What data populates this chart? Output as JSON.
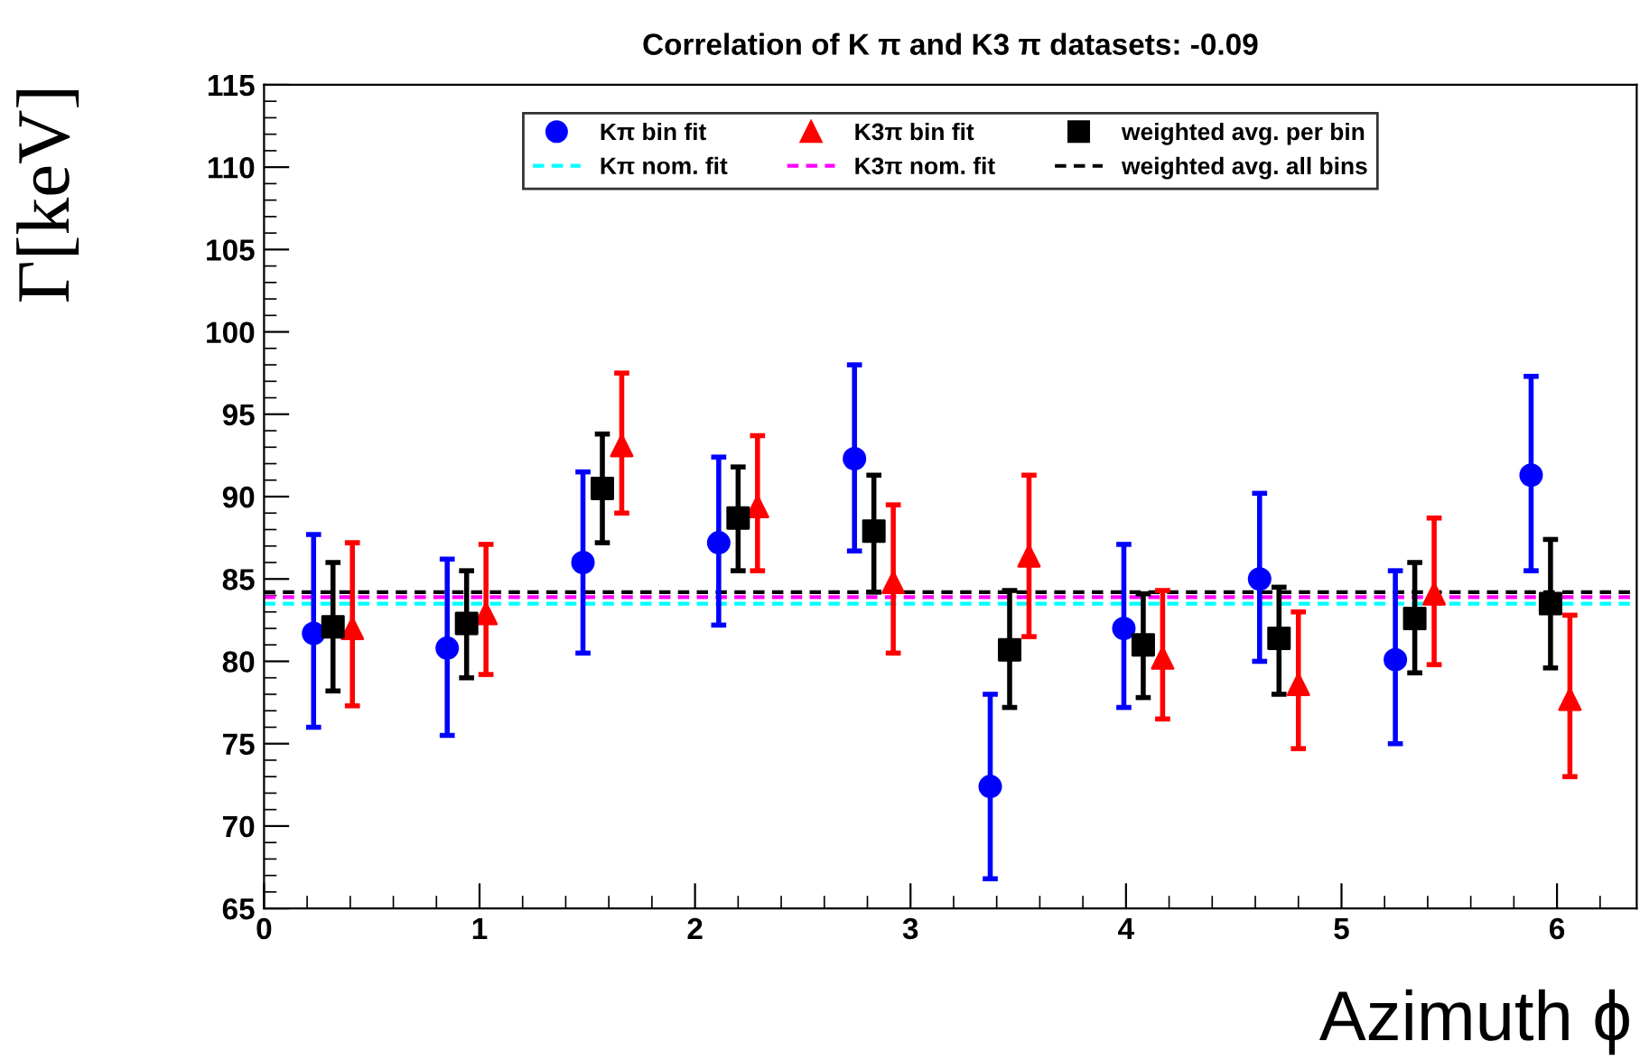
{
  "chart_data": {
    "type": "scatter",
    "title": "Correlation of K π and K3 π datasets: -0.09",
    "xlabel": "Azimuth ϕ",
    "ylabel": "Γ[keV]",
    "xlim": [
      0,
      6.37
    ],
    "xticks": [
      0,
      1,
      2,
      3,
      4,
      5,
      6
    ],
    "ylim": [
      65,
      115
    ],
    "yticks": [
      65,
      70,
      75,
      80,
      85,
      90,
      95,
      100,
      105,
      110,
      115
    ],
    "grid": false,
    "legend": "top",
    "series": [
      {
        "name": "Kπ bin fit",
        "color": "#0000ff",
        "marker": "circle",
        "x": [
          0.23,
          0.85,
          1.48,
          2.11,
          2.74,
          3.37,
          3.99,
          4.62,
          5.25,
          5.88
        ],
        "values": [
          81.7,
          80.8,
          86.0,
          87.2,
          92.3,
          72.4,
          82.0,
          85.0,
          80.1,
          91.3
        ],
        "errors": [
          [
            76.0,
            87.7
          ],
          [
            75.5,
            86.2
          ],
          [
            80.5,
            91.5
          ],
          [
            82.2,
            92.4
          ],
          [
            86.7,
            98.0
          ],
          [
            66.8,
            78.0
          ],
          [
            77.2,
            87.1
          ],
          [
            80.0,
            90.2
          ],
          [
            75.0,
            85.5
          ],
          [
            85.5,
            97.3
          ]
        ]
      },
      {
        "name": "K3π bin fit",
        "color": "#ff0000",
        "marker": "triangle",
        "x": [
          0.41,
          1.03,
          1.66,
          2.29,
          2.92,
          3.55,
          4.17,
          4.8,
          5.43,
          6.06
        ],
        "values": [
          82.0,
          82.9,
          93.1,
          89.4,
          84.8,
          86.4,
          80.2,
          78.6,
          84.1,
          77.7
        ],
        "errors": [
          [
            77.3,
            87.2
          ],
          [
            79.2,
            87.1
          ],
          [
            89.0,
            97.5
          ],
          [
            85.5,
            93.7
          ],
          [
            80.5,
            89.5
          ],
          [
            81.5,
            91.3
          ],
          [
            76.5,
            84.3
          ],
          [
            74.7,
            83.0
          ],
          [
            79.8,
            88.7
          ],
          [
            73.0,
            82.8
          ]
        ]
      },
      {
        "name": "weighted avg. per bin",
        "color": "#000000",
        "marker": "square",
        "x": [
          0.32,
          0.94,
          1.57,
          2.2,
          2.83,
          3.46,
          4.08,
          4.71,
          5.34,
          5.97
        ],
        "values": [
          82.1,
          82.3,
          90.5,
          88.7,
          87.9,
          80.7,
          81.0,
          81.4,
          82.6,
          83.5
        ],
        "errors": [
          [
            78.2,
            86.0
          ],
          [
            79.0,
            85.5
          ],
          [
            87.2,
            93.8
          ],
          [
            85.5,
            91.8
          ],
          [
            84.2,
            91.3
          ],
          [
            77.2,
            84.3
          ],
          [
            77.8,
            84.1
          ],
          [
            78.0,
            84.5
          ],
          [
            79.3,
            86.0
          ],
          [
            79.6,
            87.4
          ]
        ]
      },
      {
        "name": "Kπ nom. fit",
        "type": "line",
        "color": "#00ffff",
        "line_style": "dashed",
        "marker": "none",
        "x": [
          0,
          6.37
        ],
        "values": [
          83.5,
          83.5
        ]
      },
      {
        "name": "K3π nom. fit",
        "type": "line",
        "color": "#ff00ff",
        "line_style": "dashed",
        "marker": "none",
        "x": [
          0,
          6.37
        ],
        "values": [
          83.9,
          83.9
        ]
      },
      {
        "name": "weighted avg. all bins",
        "type": "line",
        "color": "#000000",
        "line_style": "dashed",
        "marker": "none",
        "x": [
          0,
          6.37
        ],
        "values": [
          84.2,
          84.2
        ]
      }
    ]
  }
}
